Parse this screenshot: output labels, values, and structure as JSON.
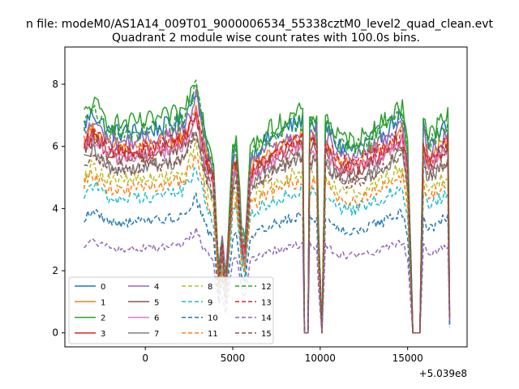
{
  "chart_data": {
    "type": "line",
    "suptitle": "n file: modeM0/AS1A14_009T01_9000006534_55338cztM0_level2_quad_clean.evt",
    "title": "Quadrant 2 module wise count rates with 100.0s bins.",
    "xlabel": "",
    "ylabel": "",
    "x_offset_label": "+5.039e8",
    "xlim": [
      -4600,
      18400
    ],
    "ylim": [
      -0.45,
      9.2
    ],
    "x_ticks": [
      0,
      5000,
      10000,
      15000
    ],
    "x_tick_labels": [
      "0",
      "5000",
      "10000",
      "15000"
    ],
    "y_ticks": [
      0,
      2,
      4,
      6,
      8
    ],
    "y_tick_labels": [
      "0",
      "2",
      "4",
      "6",
      "8"
    ],
    "x_start": -3500,
    "x_end": 17400,
    "x_step": 100,
    "grid": false,
    "legend": {
      "placement": "lower-left",
      "columns": 4
    },
    "series": [
      {
        "name": "0",
        "color": "#1f77b4",
        "dash": "solid",
        "base": 6.7
      },
      {
        "name": "1",
        "color": "#ff7f0e",
        "dash": "solid",
        "base": 6.2
      },
      {
        "name": "2",
        "color": "#2ca02c",
        "dash": "solid",
        "base": 7.0
      },
      {
        "name": "3",
        "color": "#d62728",
        "dash": "solid",
        "base": 6.0
      },
      {
        "name": "4",
        "color": "#9467bd",
        "dash": "solid",
        "base": 6.4
      },
      {
        "name": "5",
        "color": "#8c564b",
        "dash": "solid",
        "base": 5.9
      },
      {
        "name": "6",
        "color": "#e377c2",
        "dash": "solid",
        "base": 5.9
      },
      {
        "name": "7",
        "color": "#7f7f7f",
        "dash": "solid",
        "base": 5.5
      },
      {
        "name": "8",
        "color": "#bcbd22",
        "dash": "dashed",
        "base": 5.1
      },
      {
        "name": "9",
        "color": "#17becf",
        "dash": "dashed",
        "base": 4.5
      },
      {
        "name": "10",
        "color": "#1f77b4",
        "dash": "dashed",
        "base": 3.7
      },
      {
        "name": "11",
        "color": "#ff7f0e",
        "dash": "dashed",
        "base": 4.8
      },
      {
        "name": "12",
        "color": "#2ca02c",
        "dash": "dashed",
        "base": 6.7
      },
      {
        "name": "13",
        "color": "#d62728",
        "dash": "dashed",
        "base": 6.1
      },
      {
        "name": "14",
        "color": "#9467bd",
        "dash": "dashed",
        "base": 2.8
      },
      {
        "name": "15",
        "color": "#8c564b",
        "dash": "dashed",
        "base": 5.5
      }
    ],
    "shape_profile": [
      {
        "x": -3500,
        "f": 1.0
      },
      {
        "x": -3000,
        "f": 1.06
      },
      {
        "x": -2000,
        "f": 0.96
      },
      {
        "x": 0,
        "f": 0.97
      },
      {
        "x": 1500,
        "f": 1.0
      },
      {
        "x": 2200,
        "f": 1.02
      },
      {
        "x": 2900,
        "f": 1.18
      },
      {
        "x": 3400,
        "f": 0.94
      },
      {
        "x": 3900,
        "f": 0.8
      },
      {
        "x": 4200,
        "f": 0.3
      },
      {
        "x": 4400,
        "f": 0.45
      },
      {
        "x": 4600,
        "f": 0.25
      },
      {
        "x": 4800,
        "f": 0.55
      },
      {
        "x": 5000,
        "f": 0.85
      },
      {
        "x": 5200,
        "f": 0.9
      },
      {
        "x": 5500,
        "f": 0.5
      },
      {
        "x": 5700,
        "f": 0.4
      },
      {
        "x": 6000,
        "f": 0.85
      },
      {
        "x": 7000,
        "f": 0.93
      },
      {
        "x": 8500,
        "f": 1.0
      },
      {
        "x": 9000,
        "f": 1.02
      },
      {
        "x": 9100,
        "f": 0.0
      },
      {
        "x": 9300,
        "f": 0.0
      },
      {
        "x": 9400,
        "f": 1.0
      },
      {
        "x": 9800,
        "f": 1.0
      },
      {
        "x": 9900,
        "f": 0.5
      },
      {
        "x": 10100,
        "f": 0.0
      },
      {
        "x": 10300,
        "f": 1.0
      },
      {
        "x": 11000,
        "f": 0.9
      },
      {
        "x": 12000,
        "f": 0.88
      },
      {
        "x": 13500,
        "f": 0.96
      },
      {
        "x": 14700,
        "f": 1.05
      },
      {
        "x": 15000,
        "f": 0.85
      },
      {
        "x": 15200,
        "f": 0.3
      },
      {
        "x": 15300,
        "f": 0.0
      },
      {
        "x": 15700,
        "f": 0.0
      },
      {
        "x": 15900,
        "f": 1.0
      },
      {
        "x": 16200,
        "f": 0.9
      },
      {
        "x": 17000,
        "f": 0.98
      },
      {
        "x": 17300,
        "f": 1.0
      },
      {
        "x": 17400,
        "f": 0.08
      }
    ]
  }
}
